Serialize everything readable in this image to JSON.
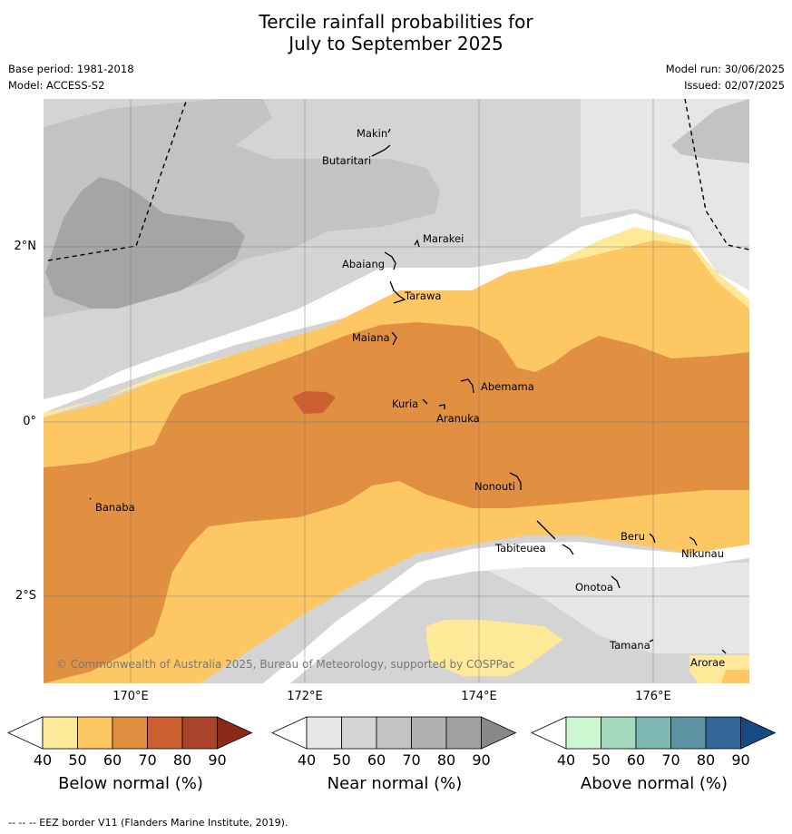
{
  "title_line1": "Tercile rainfall probabilities for",
  "title_line2": "July to September 2025",
  "meta_left": [
    "Base period: 1981-2018",
    "Model: ACCESS-S2"
  ],
  "meta_right": [
    "Model run: 30/06/2025",
    "Issued: 02/07/2025"
  ],
  "lat_labels": [
    "2°N",
    "0°",
    "2°S"
  ],
  "lon_labels": [
    "170°E",
    "172°E",
    "174°E",
    "176°E"
  ],
  "places": [
    "Makin",
    "Butaritari",
    "Marakei",
    "Abaiang",
    "Tarawa",
    "Maiana",
    "Abemama",
    "Kuria",
    "Aranuka",
    "Nonouti",
    "Banaba",
    "Beru",
    "Nikunau",
    "Tabiteuea",
    "Onotoa",
    "Tamana",
    "Arorae"
  ],
  "copyright": "© Commonwealth of Australia 2025, Bureau of Meteorology, supported by COSPPac",
  "colorbars": [
    {
      "label": "Below normal (%)",
      "ticks": [
        "40",
        "50",
        "60",
        "70",
        "80",
        "90"
      ],
      "colors": [
        "#ffffff",
        "#fee999",
        "#fdc864",
        "#e09040",
        "#cd6030",
        "#a9442a",
        "#8c2a1a"
      ]
    },
    {
      "label": "Near normal (%)",
      "ticks": [
        "40",
        "50",
        "60",
        "70",
        "80",
        "90"
      ],
      "colors": [
        "#ffffff",
        "#e6e6e6",
        "#d4d4d4",
        "#c3c3c3",
        "#b0b0b0",
        "#a0a0a0",
        "#888888"
      ]
    },
    {
      "label": "Above normal (%)",
      "ticks": [
        "40",
        "50",
        "60",
        "70",
        "80",
        "90"
      ],
      "colors": [
        "#ffffff",
        "#ccf7d0",
        "#a4dabd",
        "#7cb7b1",
        "#5d92a3",
        "#336699",
        "#174a80"
      ]
    }
  ],
  "footnote": "--  --  -- EEZ border V11 (Flanders Marine Institute, 2019)."
}
